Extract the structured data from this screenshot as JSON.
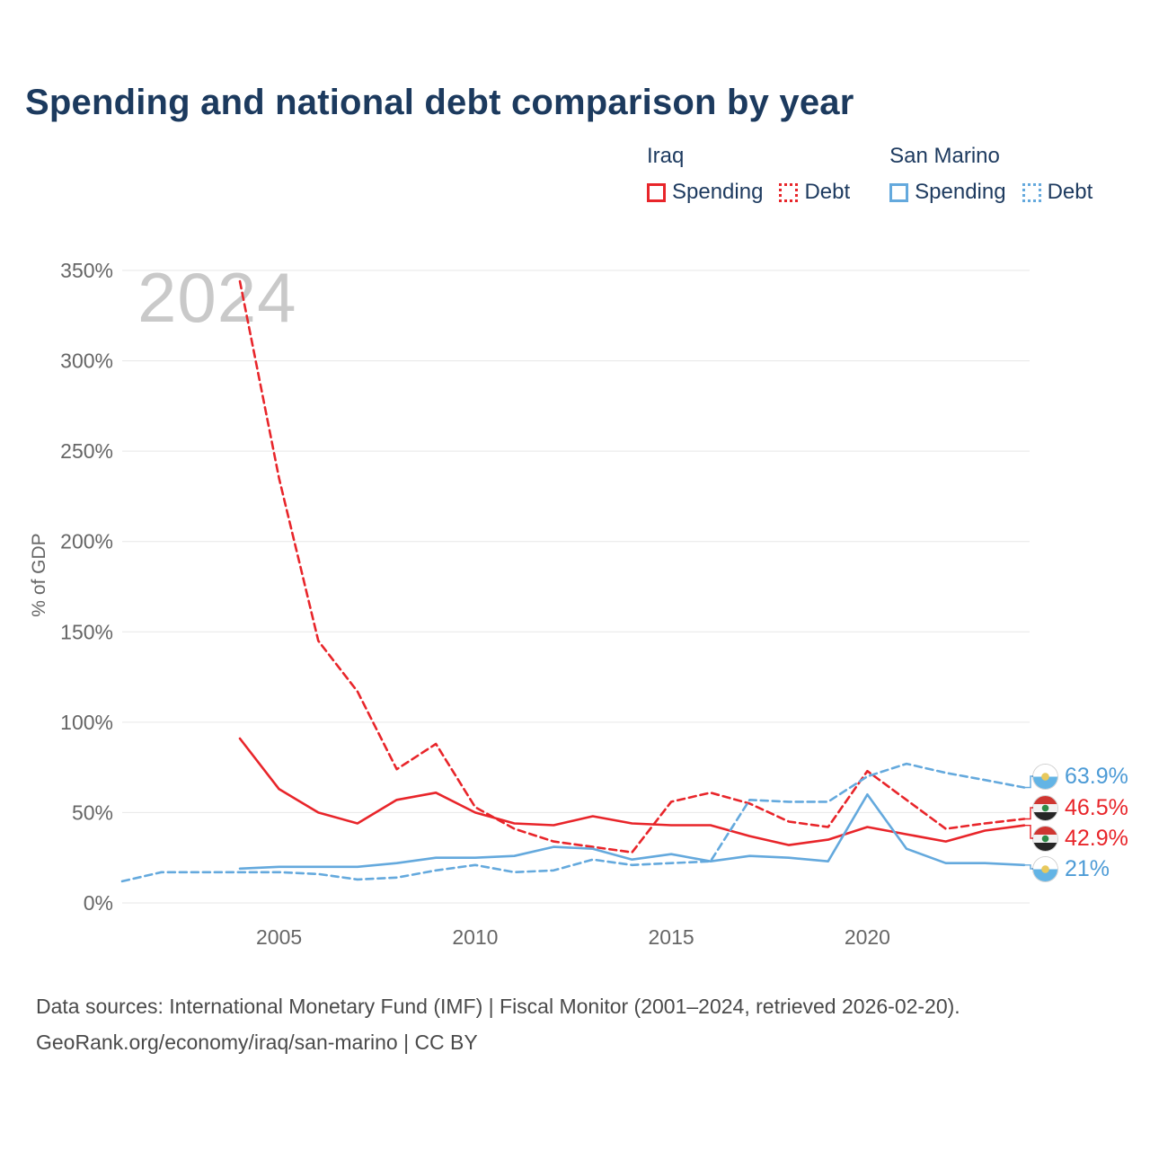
{
  "title": "Spending and national debt comparison by year",
  "watermark": "2024",
  "legend": {
    "groups": [
      {
        "country": "Iraq",
        "items": [
          {
            "label": "Spending",
            "style": "solid",
            "color": "#e8252a"
          },
          {
            "label": "Debt",
            "style": "dotted",
            "color": "#e8252a"
          }
        ]
      },
      {
        "country": "San Marino",
        "items": [
          {
            "label": "Spending",
            "style": "solid",
            "color": "#64a9dd"
          },
          {
            "label": "Debt",
            "style": "dotted",
            "color": "#64a9dd"
          }
        ]
      }
    ]
  },
  "end_labels": [
    {
      "value": "63.9%",
      "country": "San Marino",
      "series": "San Marino Debt",
      "color": "#4d9bd6",
      "flag": "san-marino"
    },
    {
      "value": "46.5%",
      "country": "Iraq",
      "series": "Iraq Debt",
      "color": "#e8252a",
      "flag": "iraq"
    },
    {
      "value": "42.9%",
      "country": "Iraq",
      "series": "Iraq Spending",
      "color": "#e8252a",
      "flag": "iraq"
    },
    {
      "value": "21%",
      "country": "San Marino",
      "series": "San Marino Spending",
      "color": "#4d9bd6",
      "flag": "san-marino"
    }
  ],
  "footer": {
    "line1": "Data sources: International Monetary Fund (IMF) | Fiscal Monitor (2001–2024, retrieved 2026-02-20).",
    "line2": "GeoRank.org/economy/iraq/san-marino | CC BY"
  },
  "chart_data": {
    "type": "line",
    "title": "Spending and national debt comparison by year",
    "xlabel": "",
    "ylabel": "% of GDP",
    "xlim": [
      2001,
      2024
    ],
    "ylim": [
      0,
      350
    ],
    "grid": true,
    "legend_position": "top-right",
    "yticks": [
      0,
      50,
      100,
      150,
      200,
      250,
      300,
      350
    ],
    "xticks": [
      2005,
      2010,
      2015,
      2020
    ],
    "series": [
      {
        "name": "Iraq Debt",
        "color": "#e8252a",
        "dashed": true,
        "x": [
          2004,
          2005,
          2006,
          2007,
          2008,
          2009,
          2010,
          2011,
          2012,
          2013,
          2014,
          2015,
          2016,
          2017,
          2018,
          2019,
          2020,
          2021,
          2022,
          2023,
          2024
        ],
        "values": [
          344,
          235,
          145,
          117,
          74,
          88,
          53,
          41,
          34,
          31,
          28,
          56,
          61,
          55,
          45,
          42,
          73,
          57,
          41,
          44,
          46.5
        ]
      },
      {
        "name": "Iraq Spending",
        "color": "#e8252a",
        "dashed": false,
        "x": [
          2004,
          2005,
          2006,
          2007,
          2008,
          2009,
          2010,
          2011,
          2012,
          2013,
          2014,
          2015,
          2016,
          2017,
          2018,
          2019,
          2020,
          2021,
          2022,
          2023,
          2024
        ],
        "values": [
          91,
          63,
          50,
          44,
          57,
          61,
          50,
          44,
          43,
          48,
          44,
          43,
          43,
          37,
          32,
          35,
          42,
          38,
          34,
          40,
          42.9
        ]
      },
      {
        "name": "San Marino Debt",
        "color": "#64a9dd",
        "dashed": true,
        "x": [
          2001,
          2002,
          2003,
          2004,
          2005,
          2006,
          2007,
          2008,
          2009,
          2010,
          2011,
          2012,
          2013,
          2014,
          2015,
          2016,
          2017,
          2018,
          2019,
          2020,
          2021,
          2022,
          2023,
          2024
        ],
        "values": [
          12,
          17,
          17,
          17,
          17,
          16,
          13,
          14,
          18,
          21,
          17,
          18,
          24,
          21,
          22,
          23,
          57,
          56,
          56,
          70,
          77,
          72,
          68,
          63.9
        ]
      },
      {
        "name": "San Marino Spending",
        "color": "#64a9dd",
        "dashed": false,
        "x": [
          2004,
          2005,
          2006,
          2007,
          2008,
          2009,
          2010,
          2011,
          2012,
          2013,
          2014,
          2015,
          2016,
          2017,
          2018,
          2019,
          2020,
          2021,
          2022,
          2023,
          2024
        ],
        "values": [
          19,
          20,
          20,
          20,
          22,
          25,
          25,
          26,
          31,
          30,
          24,
          27,
          23,
          26,
          25,
          23,
          60,
          30,
          22,
          22,
          21
        ]
      }
    ]
  }
}
